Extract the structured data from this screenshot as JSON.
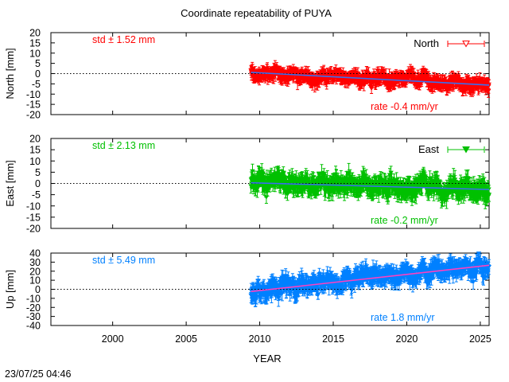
{
  "title": "Coordinate repeatability of PUYA",
  "timestamp": "23/07/25 04:46",
  "chart_data": {
    "type": "scatter",
    "xlabel": "YEAR",
    "xlim": [
      1995.8,
      2025.6
    ],
    "x_ticks": [
      2000,
      2005,
      2010,
      2015,
      2020,
      2025
    ],
    "x_tick_labels": [
      "2000",
      "2005",
      "2010",
      "2015",
      "2020",
      "2025"
    ],
    "panels": [
      {
        "name": "north",
        "ylabel": "North [mm]",
        "ylim": [
          -20,
          20
        ],
        "y_ticks": [
          20,
          15,
          10,
          5,
          0,
          -5,
          -10,
          -15,
          -20
        ],
        "y_tick_labels": [
          "20",
          "15",
          "10",
          "5",
          "0",
          "-5",
          "-10",
          "-15",
          "-20"
        ],
        "std_text": "std ± 1.52 mm",
        "rate_text": "rate -0.4 mm/yr",
        "legend": "North",
        "legend_marker": "triangle-down-open",
        "point_color": "#ff0000",
        "trend_color": "#3a6ff0",
        "data_start": 2009.4,
        "data_end": 2025.6,
        "trend_start_value": 0.6,
        "trend_end_value": -5.6,
        "scatter_sd": 1.52,
        "error_bar_half": 2.3
      },
      {
        "name": "east",
        "ylabel": "East [mm]",
        "ylim": [
          -20,
          20
        ],
        "y_ticks": [
          20,
          15,
          10,
          5,
          0,
          -5,
          -10,
          -15,
          -20
        ],
        "y_tick_labels": [
          "20",
          "15",
          "10",
          "5",
          "0",
          "-5",
          "-10",
          "-15",
          "-20"
        ],
        "std_text": "std ± 2.13 mm",
        "rate_text": "rate -0.2 mm/yr",
        "legend": "East",
        "legend_marker": "triangle-down-filled",
        "point_color": "#00c000",
        "trend_color": "#3a6ff0",
        "data_start": 2009.4,
        "data_end": 2025.6,
        "trend_start_value": 0.3,
        "trend_end_value": -2.7,
        "scatter_sd": 2.13,
        "error_bar_half": 2.8
      },
      {
        "name": "up",
        "ylabel": "Up [mm]",
        "ylim": [
          -40,
          40
        ],
        "y_ticks": [
          40,
          30,
          20,
          10,
          0,
          -10,
          -20,
          -30,
          -40
        ],
        "y_tick_labels": [
          "40",
          "30",
          "20",
          "10",
          "0",
          "-10",
          "-20",
          "-30",
          "-40"
        ],
        "std_text": "std ± 5.49 mm",
        "rate_text": "rate  1.8 mm/yr",
        "legend": "",
        "legend_marker": "",
        "point_color": "#0080ff",
        "trend_color": "#ff40c0",
        "data_start": 2009.4,
        "data_end": 2025.6,
        "trend_start_value": -2.5,
        "trend_end_value": 26.5,
        "scatter_sd": 5.49,
        "error_bar_half": 6.5
      }
    ]
  }
}
